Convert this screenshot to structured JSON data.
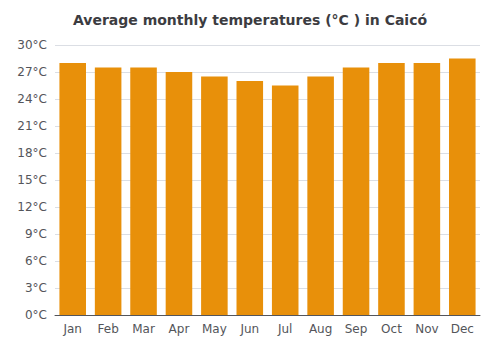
{
  "chart_data": {
    "type": "bar",
    "title": "Average monthly temperatures (°C ) in Caicó",
    "categories": [
      "Jan",
      "Feb",
      "Mar",
      "Apr",
      "May",
      "Jun",
      "Jul",
      "Aug",
      "Sep",
      "Oct",
      "Nov",
      "Dec"
    ],
    "values": [
      28.0,
      27.5,
      27.5,
      27.0,
      26.5,
      26.0,
      25.5,
      26.5,
      27.5,
      28.0,
      28.0,
      28.5
    ],
    "color": "#E8900A",
    "ylim": [
      0,
      30
    ],
    "yticks": [
      {
        "value": 0,
        "label": "0°C"
      },
      {
        "value": 3,
        "label": "3°C"
      },
      {
        "value": 6,
        "label": "6°C"
      },
      {
        "value": 9,
        "label": "9°C"
      },
      {
        "value": 12,
        "label": "12°C"
      },
      {
        "value": 15,
        "label": "15°C"
      },
      {
        "value": 18,
        "label": "18°C"
      },
      {
        "value": 21,
        "label": "21°C"
      },
      {
        "value": 24,
        "label": "24°C"
      },
      {
        "value": 27,
        "label": "27°C"
      },
      {
        "value": 30,
        "label": "30°C"
      }
    ],
    "grid": true
  }
}
